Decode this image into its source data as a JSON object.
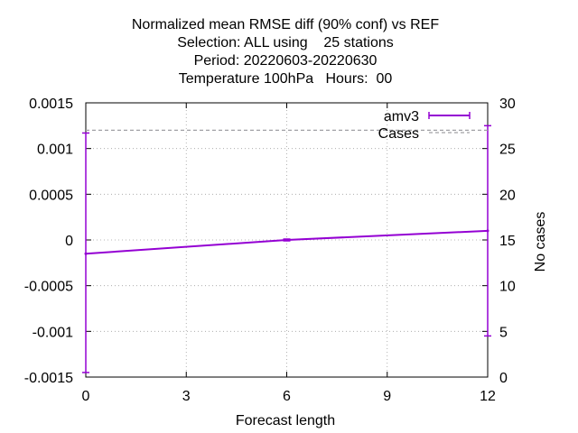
{
  "chart_data": {
    "type": "line",
    "title_lines": [
      "Normalized mean RMSE diff (90% conf) vs REF",
      "Selection: ALL using    25 stations",
      "Period: 20220603-20220630",
      "Temperature 100hPa   Hours:  00"
    ],
    "xlabel": "Forecast length",
    "ylabel": "",
    "y2label": "No cases",
    "xlim": [
      0,
      12
    ],
    "ylim": [
      -0.0015,
      0.0015
    ],
    "y2lim": [
      0,
      30
    ],
    "x_ticks": [
      0,
      3,
      6,
      9,
      12
    ],
    "x_tick_labels": [
      "0",
      "3",
      "6",
      "9",
      "12"
    ],
    "y_ticks": [
      0.0015,
      0.001,
      0.0005,
      0,
      -0.0005,
      -0.001,
      -0.0015
    ],
    "y_tick_labels": [
      "0.0015",
      "0.001",
      "0.0005",
      "0",
      "-0.0005",
      "-0.001",
      "-0.0015"
    ],
    "y2_ticks": [
      30,
      25,
      20,
      15,
      10,
      5,
      0
    ],
    "y2_tick_labels": [
      "30",
      "25",
      "20",
      "15",
      "10",
      "5",
      "0"
    ],
    "grid": true,
    "legend_position": "top-right",
    "series": [
      {
        "name": "amv3",
        "color": "#9400d3",
        "style": "line with error bars",
        "x": [
          0,
          6,
          12
        ],
        "y": [
          -0.00015,
          0.0,
          0.0001
        ],
        "err_low": [
          -0.00145,
          -1e-05,
          -0.00105
        ],
        "err_high": [
          0.00117,
          1e-05,
          0.00125
        ]
      },
      {
        "name": "Cases",
        "color": "#a0a0a4",
        "style": "dashed",
        "axis": "y2",
        "x": [
          0,
          12
        ],
        "y": [
          27,
          27
        ]
      }
    ]
  }
}
